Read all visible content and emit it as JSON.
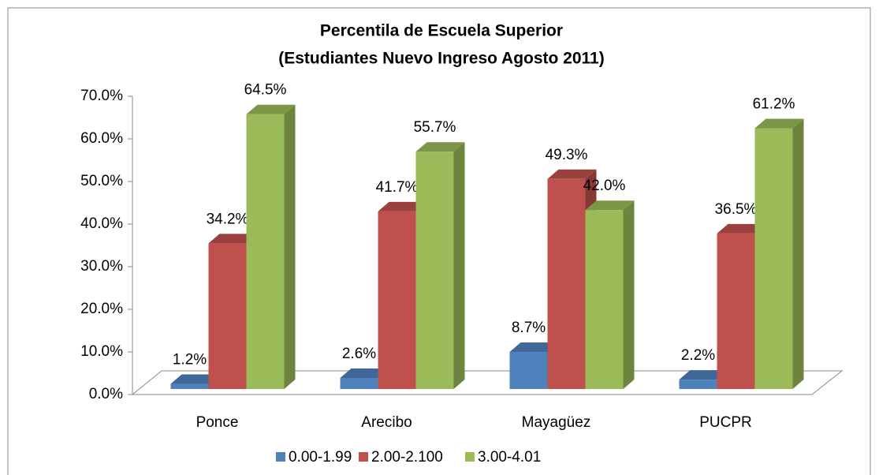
{
  "chart_data": {
    "type": "bar3d",
    "title": "Percentila  de Escuela Superior",
    "subtitle": "(Estudiantes Nuevo Ingreso  Agosto 2011)",
    "categories": [
      "Ponce",
      "Arecibo",
      "Mayagüez",
      "PUCPR"
    ],
    "series": [
      {
        "name": "0.00-1.99",
        "color": "#4f81bd",
        "values": [
          1.2,
          2.6,
          8.7,
          2.2
        ],
        "value_labels": [
          "1.2%",
          "2.6%",
          "8.7%",
          "2.2%"
        ]
      },
      {
        "name": "2.00-2.100",
        "color": "#c0504d",
        "values": [
          34.2,
          41.7,
          49.3,
          36.5
        ],
        "value_labels": [
          "34.2%",
          "41.7%",
          "49.3%",
          "36.5%"
        ]
      },
      {
        "name": "3.00-4.01",
        "color": "#9bbb59",
        "values": [
          64.5,
          55.7,
          42.0,
          61.2
        ],
        "value_labels": [
          "64.5%",
          "55.7%",
          "42.0%",
          "61.2%"
        ]
      }
    ],
    "ylim": [
      0,
      70
    ],
    "yticks": [
      {
        "value": 0,
        "label": "0.0%"
      },
      {
        "value": 10,
        "label": "10.0%"
      },
      {
        "value": 20,
        "label": "20.0%"
      },
      {
        "value": 30,
        "label": "30.0%"
      },
      {
        "value": 40,
        "label": "40.0%"
      },
      {
        "value": 50,
        "label": "50.0%"
      },
      {
        "value": 60,
        "label": "60.0%"
      },
      {
        "value": 70,
        "label": "70.0%"
      }
    ],
    "legend": "bottom"
  }
}
